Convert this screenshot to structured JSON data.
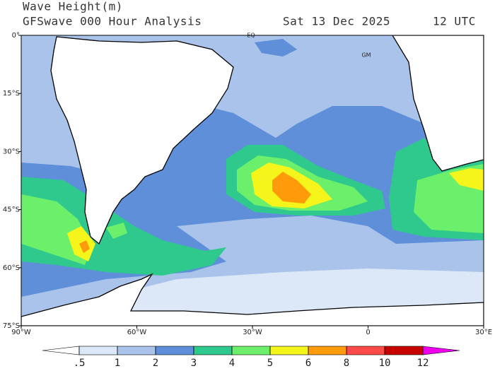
{
  "header": {
    "title": "Wave Height(m)",
    "subtitle": "GFSwave 000 Hour Analysis",
    "date": "Sat 13 Dec 2025",
    "time": "12 UTC"
  },
  "map": {
    "lat_ticks": [
      {
        "value": 0,
        "label": "0°"
      },
      {
        "value": -15,
        "label": "15°S"
      },
      {
        "value": -30,
        "label": "30°S"
      },
      {
        "value": -45,
        "label": "45°S"
      },
      {
        "value": -60,
        "label": "60°S"
      },
      {
        "value": -75,
        "label": "75°S"
      }
    ],
    "lon_ticks": [
      {
        "value": -90,
        "label": "90°W"
      },
      {
        "value": -60,
        "label": "60°W"
      },
      {
        "value": -30,
        "label": "30°W"
      },
      0,
      {
        "value": 30,
        "label": "30°E"
      }
    ],
    "labels": [
      "EQ",
      "GM"
    ]
  },
  "legend": {
    "levels": [
      {
        "value": 0.5,
        "label": ".5"
      },
      1,
      2,
      3,
      4,
      5,
      6,
      8,
      10,
      12
    ],
    "colors": [
      "#ffffff",
      "#dce8f7",
      "#a9c3ea",
      "#5e8fd8",
      "#2fc98e",
      "#6cf06c",
      "#f5f51c",
      "#ff9a0a",
      "#ff4a4a",
      "#c80000",
      "#ee00ee"
    ]
  }
}
